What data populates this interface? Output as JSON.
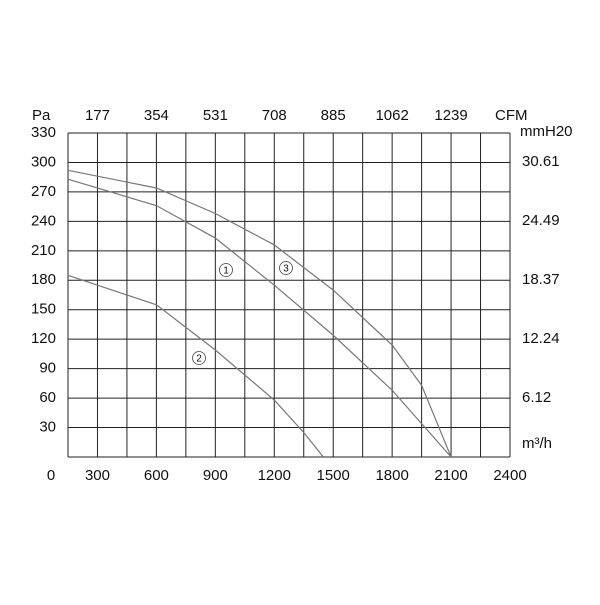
{
  "chart_data": {
    "type": "line",
    "ylabel": "Pa",
    "xlabel": "m³/h",
    "x2label": "CFM",
    "y2label": "mmH20",
    "xlim": [
      150,
      2400
    ],
    "xticks": [
      300,
      600,
      900,
      1200,
      1500,
      1800,
      2100,
      2400
    ],
    "xminor": [
      150,
      450,
      750,
      1050,
      1350,
      1650,
      1950,
      2250
    ],
    "x2lim": [
      88.5,
      1416
    ],
    "x2ticks": [
      177,
      354,
      531,
      708,
      885,
      1062,
      1239
    ],
    "ylim": [
      0,
      330
    ],
    "yticks": [
      0,
      30,
      60,
      90,
      120,
      150,
      180,
      210,
      240,
      270,
      300,
      330
    ],
    "y2lim": [
      0,
      33.65
    ],
    "y2ticks": [
      6.12,
      12.24,
      18.37,
      24.49,
      30.61
    ],
    "grid": true,
    "series": [
      {
        "name": "1",
        "color": "#777777",
        "x": [
          150,
          600,
          900,
          1200,
          1500,
          1800,
          2100
        ],
        "values": [
          283,
          256,
          223,
          175,
          124,
          68,
          0
        ]
      },
      {
        "name": "2",
        "color": "#777777",
        "x": [
          150,
          600,
          900,
          1200,
          1350,
          1450
        ],
        "values": [
          185,
          155,
          109,
          58,
          25,
          0
        ]
      },
      {
        "name": "3",
        "color": "#777777",
        "x": [
          150,
          600,
          900,
          1200,
          1500,
          1800,
          1950,
          2100
        ],
        "values": [
          292,
          274,
          248,
          216,
          170,
          114,
          73,
          0
        ]
      }
    ]
  }
}
